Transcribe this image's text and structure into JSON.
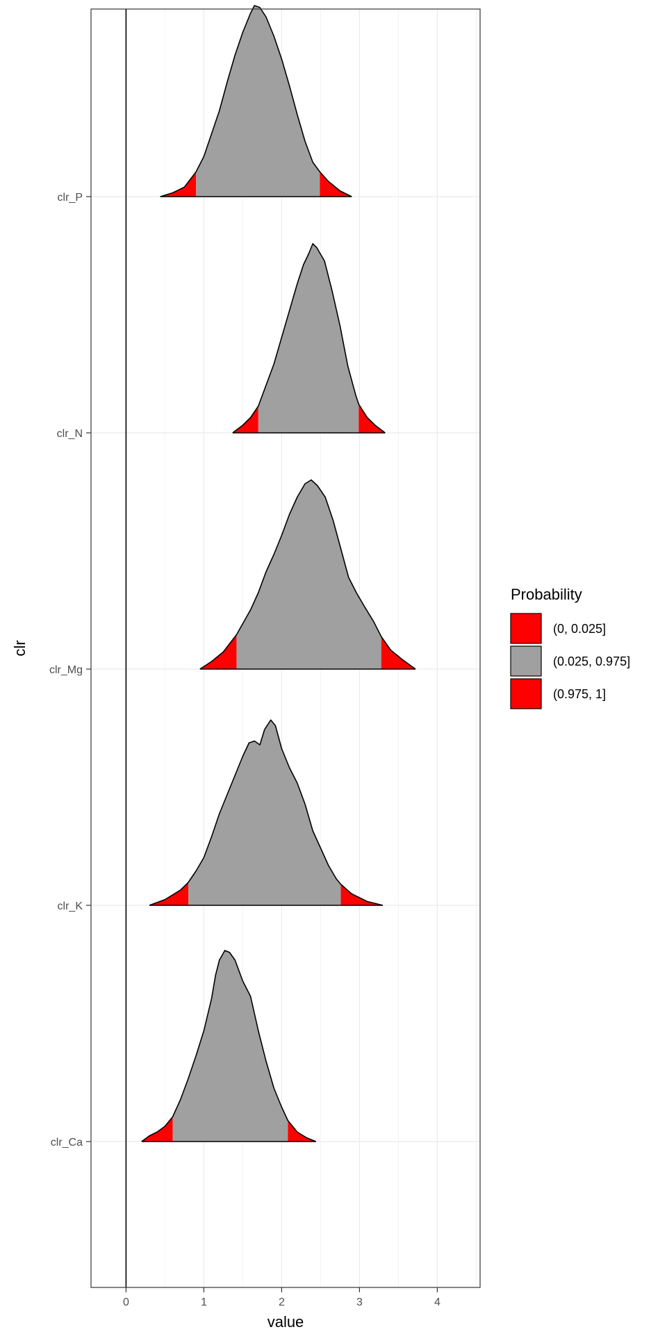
{
  "chart_data": {
    "type": "area",
    "xlabel": "value",
    "ylabel": "clr",
    "xlim": [
      -0.45,
      4.55
    ],
    "x_ticks": [
      "0",
      "1",
      "2",
      "3",
      "4"
    ],
    "grid": true,
    "reference_line_x": 0,
    "categories": [
      "clr_Ca",
      "clr_K",
      "clr_Mg",
      "clr_N",
      "clr_P"
    ],
    "legend": {
      "title": "Probability",
      "position": "right",
      "items": [
        {
          "label": "(0, 0.025]",
          "color": "#ff0000"
        },
        {
          "label": "(0.025, 0.975]",
          "color": "#a0a0a0"
        },
        {
          "label": "(0.975, 1]",
          "color": "#ff0000"
        }
      ]
    },
    "series": [
      {
        "category": "clr_Ca",
        "q_low": 0.6,
        "q_high": 2.08,
        "density": [
          [
            0.2,
            0.0
          ],
          [
            0.3,
            0.03
          ],
          [
            0.4,
            0.05
          ],
          [
            0.5,
            0.08
          ],
          [
            0.6,
            0.13
          ],
          [
            0.7,
            0.22
          ],
          [
            0.8,
            0.33
          ],
          [
            0.9,
            0.45
          ],
          [
            1.0,
            0.58
          ],
          [
            1.1,
            0.75
          ],
          [
            1.15,
            0.87
          ],
          [
            1.2,
            0.95
          ],
          [
            1.27,
            1.0
          ],
          [
            1.33,
            0.99
          ],
          [
            1.4,
            0.95
          ],
          [
            1.5,
            0.84
          ],
          [
            1.6,
            0.76
          ],
          [
            1.7,
            0.58
          ],
          [
            1.8,
            0.42
          ],
          [
            1.9,
            0.28
          ],
          [
            2.0,
            0.18
          ],
          [
            2.08,
            0.11
          ],
          [
            2.2,
            0.05
          ],
          [
            2.32,
            0.02
          ],
          [
            2.44,
            0.0
          ]
        ]
      },
      {
        "category": "clr_K",
        "q_low": 0.8,
        "q_high": 2.76,
        "density": [
          [
            0.3,
            0.0
          ],
          [
            0.5,
            0.03
          ],
          [
            0.7,
            0.08
          ],
          [
            0.8,
            0.12
          ],
          [
            0.9,
            0.18
          ],
          [
            1.0,
            0.25
          ],
          [
            1.1,
            0.36
          ],
          [
            1.2,
            0.48
          ],
          [
            1.3,
            0.58
          ],
          [
            1.4,
            0.68
          ],
          [
            1.5,
            0.78
          ],
          [
            1.58,
            0.85
          ],
          [
            1.65,
            0.86
          ],
          [
            1.72,
            0.84
          ],
          [
            1.78,
            0.92
          ],
          [
            1.86,
            0.97
          ],
          [
            1.92,
            0.94
          ],
          [
            2.0,
            0.82
          ],
          [
            2.1,
            0.72
          ],
          [
            2.2,
            0.64
          ],
          [
            2.3,
            0.53
          ],
          [
            2.4,
            0.39
          ],
          [
            2.5,
            0.3
          ],
          [
            2.6,
            0.21
          ],
          [
            2.7,
            0.14
          ],
          [
            2.76,
            0.11
          ],
          [
            2.9,
            0.06
          ],
          [
            3.1,
            0.02
          ],
          [
            3.3,
            0.0
          ]
        ]
      },
      {
        "category": "clr_Mg",
        "q_low": 1.42,
        "q_high": 3.28,
        "density": [
          [
            0.95,
            0.0
          ],
          [
            1.1,
            0.04
          ],
          [
            1.25,
            0.09
          ],
          [
            1.42,
            0.18
          ],
          [
            1.6,
            0.31
          ],
          [
            1.7,
            0.4
          ],
          [
            1.8,
            0.51
          ],
          [
            1.9,
            0.6
          ],
          [
            2.0,
            0.7
          ],
          [
            2.1,
            0.81
          ],
          [
            2.2,
            0.9
          ],
          [
            2.3,
            0.97
          ],
          [
            2.38,
            0.99
          ],
          [
            2.46,
            0.96
          ],
          [
            2.56,
            0.9
          ],
          [
            2.66,
            0.78
          ],
          [
            2.76,
            0.63
          ],
          [
            2.86,
            0.48
          ],
          [
            2.96,
            0.4
          ],
          [
            3.06,
            0.33
          ],
          [
            3.18,
            0.25
          ],
          [
            3.28,
            0.17
          ],
          [
            3.4,
            0.1
          ],
          [
            3.55,
            0.05
          ],
          [
            3.72,
            0.0
          ]
        ]
      },
      {
        "category": "clr_N",
        "q_low": 1.7,
        "q_high": 2.99,
        "density": [
          [
            1.37,
            0.0
          ],
          [
            1.5,
            0.04
          ],
          [
            1.6,
            0.08
          ],
          [
            1.7,
            0.14
          ],
          [
            1.8,
            0.25
          ],
          [
            1.9,
            0.36
          ],
          [
            2.0,
            0.5
          ],
          [
            2.1,
            0.64
          ],
          [
            2.2,
            0.78
          ],
          [
            2.28,
            0.88
          ],
          [
            2.35,
            0.94
          ],
          [
            2.4,
            0.99
          ],
          [
            2.45,
            0.97
          ],
          [
            2.55,
            0.9
          ],
          [
            2.65,
            0.74
          ],
          [
            2.75,
            0.56
          ],
          [
            2.85,
            0.35
          ],
          [
            2.95,
            0.2
          ],
          [
            2.99,
            0.15
          ],
          [
            3.1,
            0.08
          ],
          [
            3.2,
            0.04
          ],
          [
            3.33,
            0.0
          ]
        ]
      },
      {
        "category": "clr_P",
        "q_low": 0.9,
        "q_high": 2.49,
        "density": [
          [
            0.44,
            0.0
          ],
          [
            0.6,
            0.02
          ],
          [
            0.75,
            0.05
          ],
          [
            0.9,
            0.13
          ],
          [
            1.0,
            0.21
          ],
          [
            1.1,
            0.33
          ],
          [
            1.2,
            0.45
          ],
          [
            1.3,
            0.6
          ],
          [
            1.4,
            0.74
          ],
          [
            1.5,
            0.86
          ],
          [
            1.6,
            0.96
          ],
          [
            1.65,
            1.0
          ],
          [
            1.72,
            0.99
          ],
          [
            1.8,
            0.94
          ],
          [
            1.9,
            0.84
          ],
          [
            2.0,
            0.72
          ],
          [
            2.1,
            0.58
          ],
          [
            2.2,
            0.43
          ],
          [
            2.3,
            0.29
          ],
          [
            2.4,
            0.18
          ],
          [
            2.49,
            0.13
          ],
          [
            2.6,
            0.08
          ],
          [
            2.75,
            0.03
          ],
          [
            2.9,
            0.0
          ]
        ]
      }
    ]
  }
}
